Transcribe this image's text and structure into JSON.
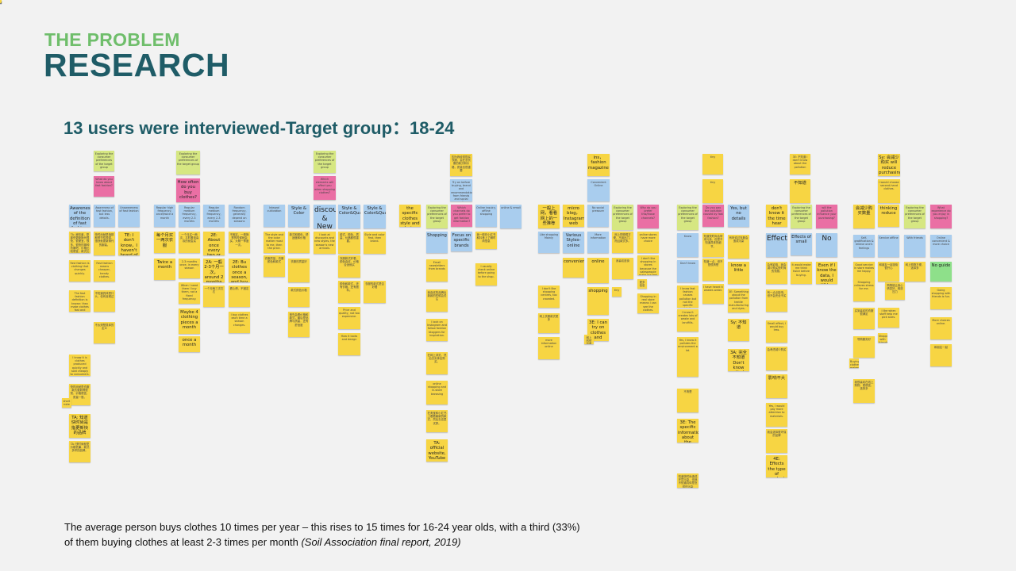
{
  "header": {
    "subtitle": "THE PROBLEM",
    "title": "RESEARCH",
    "heading": "13 users were interviewed-Target group：18-24"
  },
  "footer": {
    "text": "The average person buys clothes 10 times per year – this rises to 15 times for 16-24 year olds, with a third (33%) of them buying clothes at least 2-3 times per month ",
    "source": "(Soil Association final report, 2019)"
  },
  "colors": {
    "question": "#d6e782",
    "topic": "#ea6fa4",
    "category": "#a9cdee",
    "answer": "#f7d543",
    "highlight": "#8ee08a"
  },
  "board": {
    "notes": [
      {
        "c": "g",
        "text": "Exploring the consumer preferences of the target group"
      },
      {
        "c": "p",
        "text": "What do you know about fast fashion?"
      },
      {
        "c": "b",
        "text": "Awareness of the definition of fast fashion.",
        "big": true
      },
      {
        "c": "b",
        "text": "Awareness of fast fashion, but less details."
      },
      {
        "c": "b",
        "text": "Unawareness of fast fashion"
      },
      {
        "c": "y",
        "text": "TA: 我知道，是那些更新换代很快，很便宜，很多，很快的那种衣服吧，价格比较便宜，款式比较多。"
      },
      {
        "c": "y",
        "text": "快时尚就是指那种季节性很强，很快就更新换代的服装。"
      },
      {
        "c": "y",
        "text": "TE: I don't know，I haven't heard of it.",
        "big": true
      },
      {
        "c": "y",
        "text": "Fast fashion is clothing that changes quickly."
      },
      {
        "c": "y",
        "text": "Fast fashion means cheaper, trendy clothes."
      },
      {
        "c": "y",
        "text": "The fast fashion definition is known: they make clothes fast and cheap."
      },
      {
        "c": "y",
        "text": "不知道具体是什么，但有耳闻过"
      },
      {
        "c": "y",
        "text": "不太清楚具体的定义"
      },
      {
        "c": "y",
        "text": "I know it is clothes produced quickly and sold cheaply to consumers."
      },
      {
        "c": "y",
        "text": "快时尚就是衣服款式更新得很快，价格便宜，质量一般。"
      },
      {
        "c": "y",
        "text": "short note"
      },
      {
        "c": "y",
        "text": "TA: 知道快时尚是指更新快的品牌",
        "big": true
      },
      {
        "c": "y",
        "text": "TA: 快时尚就是价格低廉，款式多样的品牌。"
      },
      {
        "c": "g",
        "text": "Exploring the consumer preferences of the target group"
      },
      {
        "c": "p",
        "text": "How often do you buy clothes?",
        "big": true
      },
      {
        "c": "b",
        "text": "Regular high frequency, once/twice a month"
      },
      {
        "c": "b",
        "text": "Regular medium frequency, every 2-3 months"
      },
      {
        "c": "b",
        "text": "Regular medium frequency, every 2-3 months"
      },
      {
        "c": "b",
        "text": "Random frequency, generally depend on seasons"
      },
      {
        "c": "y",
        "text": "每个月买一两次衣服",
        "big": true
      },
      {
        "c": "y",
        "text": "一个月买一两次，平时看到喜欢的就会买"
      },
      {
        "c": "y",
        "text": "2E: About once every two or three months",
        "big": true
      },
      {
        "c": "y",
        "text": "不固定，一般换季的时候就会买，大概一季度一次。"
      },
      {
        "c": "y",
        "text": "Twice a month",
        "big": true
      },
      {
        "c": "y",
        "text": "2-3 months once, in every season"
      },
      {
        "c": "y",
        "text": "2A: 一般2-3个月一次，around 2 months",
        "big": true
      },
      {
        "c": "y",
        "text": "2E: Bu clothes once a season, and buy a lot every time",
        "big": true
      },
      {
        "c": "y",
        "text": "When I need them I buy them, not a fixed frequency."
      },
      {
        "c": "y",
        "text": "Maybe 4 clothing pieces a month",
        "big": true
      },
      {
        "c": "y",
        "text": "一个月两三次左右"
      },
      {
        "c": "y",
        "text": "看心情，不固定"
      },
      {
        "c": "y",
        "text": "once a month",
        "big": true
      },
      {
        "c": "y",
        "text": "I buy clothes each time a season changes."
      },
      {
        "c": "b",
        "text": "Integral cultivation"
      },
      {
        "c": "b",
        "text": "Style & Color",
        "big": true
      },
      {
        "c": "g",
        "text": "Exploring the consumer preferences of the target group"
      },
      {
        "c": "p",
        "text": "Which elements will affect you when shopping clothes?"
      },
      {
        "c": "b",
        "text": "discount & New Style",
        "xl": true
      },
      {
        "c": "b",
        "text": "Style & Color&Quality&Price",
        "big": true
      },
      {
        "c": "b",
        "text": "Style & Color&Quality&Brand",
        "big": true
      },
      {
        "c": "y",
        "text": "The style and the color matter most to me, then the price."
      },
      {
        "c": "y",
        "text": "款式和颜色，舒适度和价格"
      },
      {
        "c": "y",
        "text": "I look at discounts and new styles, the season's new arrivals."
      },
      {
        "c": "y",
        "text": "款式、颜色、质量、价格都很重要。"
      },
      {
        "c": "y",
        "text": "Style and color first, then brand."
      },
      {
        "c": "y",
        "text": "衣服质量，衣服颜色和款式"
      },
      {
        "c": "y",
        "text": "衣服款式好看，颜色喜欢，价格合适就买"
      },
      {
        "c": "y",
        "text": "颜色和款式，还有价格，还有面料。"
      },
      {
        "c": "y",
        "text": "Price and quality, not too expensive."
      },
      {
        "c": "y",
        "text": "衣服的款式是否好看"
      },
      {
        "c": "y",
        "text": "衣服的质量好"
      },
      {
        "c": "y",
        "text": "款式颜色价格"
      },
      {
        "c": "y",
        "text": "首先会看价格和款式，最后是品牌与质量，还有舒适度"
      },
      {
        "c": "y",
        "text": "How it looks and design"
      },
      {
        "c": "y",
        "text": "the specific clothes style and design details",
        "big": true
      },
      {
        "c": "y",
        "text": "因为我经常购买衣服，会在意衣服的款式和价格，质量也很重要"
      },
      {
        "c": "b",
        "text": "Try on before buying, brand and recommendation from friends and social media"
      },
      {
        "c": "g",
        "text": "Exploring the consumer preferences of the target group"
      },
      {
        "c": "p",
        "text": "Which channels do you prefer to get fashion information?"
      },
      {
        "c": "b",
        "text": "Online inquiry, offline shopping"
      },
      {
        "c": "b",
        "text": "online & email"
      },
      {
        "c": "b",
        "text": "Shopping",
        "big": true
      },
      {
        "c": "b",
        "text": "Focus on specific brands",
        "big": true
      },
      {
        "c": "y",
        "text": "我一般在小红书和抖音上了解时尚信息"
      },
      {
        "c": "y",
        "text": "I usually check online before going to the shop."
      },
      {
        "c": "y",
        "text": "Email newsletters from brands"
      },
      {
        "c": "y",
        "text": "我喜欢的品牌出新款的时候会关注"
      },
      {
        "c": "y",
        "text": "I look on Instagram and follow fashion bloggers for inspiration."
      },
      {
        "c": "y",
        "text": "在网上浏览，然后去实体店购买。"
      },
      {
        "c": "y",
        "text": "online shopping and in-store browsing"
      },
      {
        "c": "y",
        "text": "在淘宝和小红书上看看最新的款式，然后去店里试穿。"
      },
      {
        "c": "y",
        "text": "TA: official website, YouTube",
        "big": true
      },
      {
        "c": "y",
        "text": "一般上网，看看网上的一些推荐",
        "big": true
      },
      {
        "c": "y",
        "text": "micro blog，Instagram，web",
        "big": true
      },
      {
        "c": "y",
        "text": "ins，fashion magazine",
        "big": true
      },
      {
        "c": "b",
        "text": "Convenient Online"
      },
      {
        "c": "b",
        "text": "No social pressure"
      },
      {
        "c": "g",
        "text": "Exploring the consumer preferences of the target group"
      },
      {
        "c": "p",
        "text": "Why do you prefer this/those channels?"
      },
      {
        "c": "b",
        "text": "Like shopping Mainly"
      },
      {
        "c": "b",
        "text": "Various Styles-online",
        "big": true
      },
      {
        "c": "b",
        "text": "More information"
      },
      {
        "c": "y",
        "text": "网上购物很方便，不用出门，而且款式多。"
      },
      {
        "c": "y",
        "text": "I don't like shopping in stores because the salespeople make me feel pressured."
      },
      {
        "c": "y",
        "text": "I don't like shopping centres, too crowded."
      },
      {
        "c": "y",
        "text": "网上衣服款式更多"
      },
      {
        "c": "y",
        "text": "more information online"
      },
      {
        "c": "y",
        "text": "online",
        "big": true
      },
      {
        "c": "y",
        "text": "shopping",
        "big": true
      },
      {
        "c": "y",
        "text": "convenience",
        "big": true
      },
      {
        "c": "y",
        "text": "3E: I can try on clothes and choose what fits me",
        "big": true
      },
      {
        "c": "y",
        "text": "Shopping in real store means I can see the clothes."
      },
      {
        "c": "y",
        "text": "我喜欢逛街"
      },
      {
        "c": "y",
        "text": "online stores have more choice"
      },
      {
        "c": "y",
        "text": "网上的信息更全面"
      },
      {
        "c": "y",
        "text": "更多信息"
      },
      {
        "c": "y",
        "text": "tiny"
      },
      {
        "c": "y",
        "text": "tiny"
      },
      {
        "c": "y",
        "text": "tiny"
      },
      {
        "c": "g",
        "text": "Exploring the consumer preferences of the target group"
      },
      {
        "c": "p",
        "text": "Do you pay the pollution caused by fast fashion?"
      },
      {
        "c": "b",
        "text": "Yes, but no details",
        "big": true
      },
      {
        "c": "b",
        "text": "Know"
      },
      {
        "c": "b",
        "text": "Don't know"
      },
      {
        "c": "y",
        "text": "知道快时尚会带来污染，但是不知道具体的细节。"
      },
      {
        "c": "y",
        "text": "I know fast fashion causes pollution but not the specific details."
      },
      {
        "c": "y",
        "text": "知道一点，但不是很清楚"
      },
      {
        "c": "y",
        "text": "I have heard it wastes water."
      },
      {
        "c": "y",
        "text": "Yes, I know it pollutes the environment a lot."
      },
      {
        "c": "y",
        "text": "不清楚"
      },
      {
        "c": "y",
        "text": "3E: The specific information about the pollution is still unclear to me",
        "big": true
      },
      {
        "c": "y",
        "text": "知道快时尚造成环境污染，但我不知道具体是怎样的污染"
      },
      {
        "c": "y",
        "text": "I know it creates lots of waste and landfills."
      },
      {
        "c": "y",
        "text": "有听说过衣服会造成污染"
      },
      {
        "c": "y",
        "text": "know a little",
        "big": true
      },
      {
        "c": "y",
        "text": "3E: Something about the pollution from textile manufacturing and dyes."
      },
      {
        "c": "y",
        "text": "Sy: 不知道",
        "big": true
      },
      {
        "c": "y",
        "text": "3A: 完全不知道 Don't know entirely",
        "big": true
      },
      {
        "c": "y",
        "text": "3E: 不知道 I don't know about the pollution"
      },
      {
        "c": "y",
        "text": "不知道",
        "big": true
      },
      {
        "c": "y",
        "text": "don't know it the time hear",
        "big": true
      },
      {
        "c": "g",
        "text": "Exploring the consumer preferences of the target group"
      },
      {
        "c": "p",
        "text": "will the pollution influence your purchasing?"
      },
      {
        "c": "b",
        "text": "Effect",
        "xl": true
      },
      {
        "c": "b",
        "text": "Effects of small",
        "big": true
      },
      {
        "c": "b",
        "text": "No",
        "xl": true
      },
      {
        "c": "y",
        "text": "会有影响，我会减少购买快时尚的衣服。"
      },
      {
        "c": "y",
        "text": "It would make me think twice before buying."
      },
      {
        "c": "y",
        "text": "Even if I know the data, I would still buy clothes",
        "big": true
      },
      {
        "c": "y",
        "text": "有一点点影响，但不会完全不买"
      },
      {
        "c": "y",
        "text": "Small effect, I would buy less."
      },
      {
        "c": "y",
        "text": "会考虑减少购买"
      },
      {
        "c": "y",
        "text": "影响不大",
        "big": true
      },
      {
        "c": "y",
        "text": "Yes, I would pay more attention to materials."
      },
      {
        "c": "y",
        "text": "我会选择更环保的品牌"
      },
      {
        "c": "y",
        "text": "4E: Effects the type of product purchased",
        "big": true
      },
      {
        "c": "y",
        "text": "Sy: 会减少购买 will reduce purchasing",
        "big": true
      },
      {
        "c": "y",
        "text": "I would choose second-hand clothes."
      },
      {
        "c": "y",
        "text": "会减少购买数量",
        "big": true
      },
      {
        "c": "y",
        "text": "thinking reduce",
        "big": true
      },
      {
        "c": "g",
        "text": "Exploring the consumer preferences of the target group"
      },
      {
        "c": "p",
        "text": "What experience do you enjoy in shopping?"
      },
      {
        "c": "b",
        "text": "Self-gratification & relieve one's feelings"
      },
      {
        "c": "b",
        "text": "Service offline"
      },
      {
        "c": "b",
        "text": "With friends"
      },
      {
        "c": "b",
        "text": "Online convenient & more choice"
      },
      {
        "c": "y",
        "text": "购物能让我心情变好，释放压力"
      },
      {
        "c": "y",
        "text": "Good service in store makes me happy."
      },
      {
        "c": "y",
        "text": "和朋友一起逛街很开心"
      },
      {
        "c": "y",
        "text": "网上购物方便，选择多"
      },
      {
        "c": "lg",
        "text": "No guide",
        "big": true
      },
      {
        "c": "y",
        "text": "Shopping relieves stress for me."
      },
      {
        "c": "y",
        "text": "I like when staff help me pick sizes."
      },
      {
        "c": "y",
        "text": "Going shopping with friends is fun."
      },
      {
        "c": "y",
        "text": "More choices online."
      },
      {
        "c": "y",
        "text": "买到喜欢的衣服很满足"
      },
      {
        "c": "y",
        "text": "导购服务好"
      },
      {
        "c": "y",
        "text": "和朋友一起"
      },
      {
        "c": "y",
        "text": "我很喜欢在线上购物，更便宜，选择多"
      },
      {
        "c": "y",
        "text": "Buying clothes makes me feel good."
      },
      {
        "c": "y",
        "text": "Shopping with friends gives advice."
      },
      {
        "c": "y",
        "text": "prefer online",
        "big": true
      },
      {
        "c": "y",
        "text": "Shopping will make me happy and give me a sense of satisfaction."
      },
      {
        "c": "y",
        "text": "tiny"
      },
      {
        "c": "y",
        "text": "tiny"
      }
    ]
  }
}
